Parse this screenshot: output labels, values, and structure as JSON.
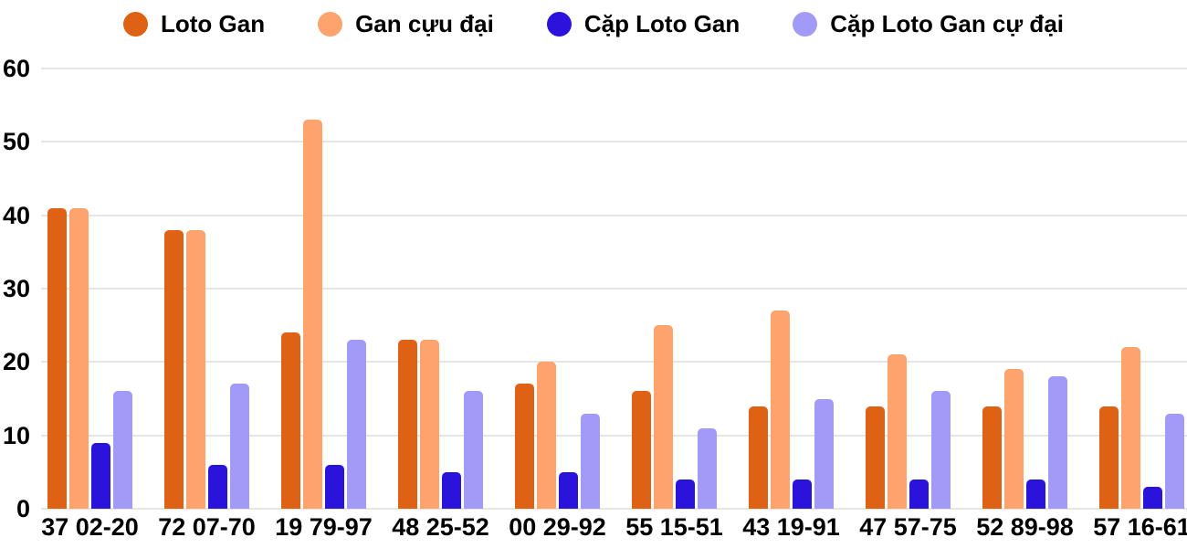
{
  "colors": {
    "background": "#FFFFFF",
    "text": "#000000",
    "grid": "#E6E6E6"
  },
  "chart_data": {
    "type": "bar",
    "title": "",
    "xlabel": "",
    "ylabel": "",
    "ylim": [
      0,
      60
    ],
    "yticks": [
      0,
      10,
      20,
      30,
      40,
      50,
      60
    ],
    "grid": true,
    "legend_position": "top",
    "categories": [
      "37 02-20",
      "72 07-70",
      "19 79-97",
      "48 25-52",
      "00 29-92",
      "55 15-51",
      "43 19-91",
      "47 57-75",
      "52 89-98",
      "57 16-61"
    ],
    "series": [
      {
        "name": "Loto Gan",
        "color": "#DF6214",
        "values": [
          41,
          38,
          24,
          23,
          17,
          16,
          14,
          14,
          14,
          14
        ]
      },
      {
        "name": "Gan cựu đại",
        "color": "#FFA36E",
        "values": [
          41,
          38,
          53,
          23,
          20,
          25,
          27,
          21,
          19,
          22
        ]
      },
      {
        "name": "Cặp Loto Gan",
        "color": "#2A14DB",
        "values": [
          9,
          6,
          6,
          5,
          5,
          4,
          4,
          4,
          4,
          3
        ]
      },
      {
        "name": "Cặp Loto Gan cự đại",
        "color": "#A29AF7",
        "values": [
          16,
          17,
          23,
          16,
          13,
          11,
          15,
          16,
          18,
          13
        ]
      }
    ]
  }
}
